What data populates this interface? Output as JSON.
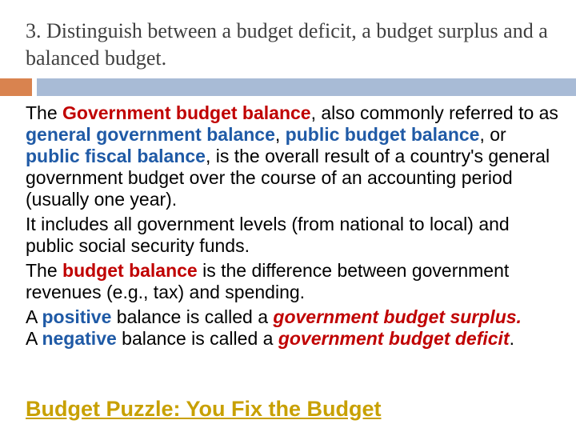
{
  "slide": {
    "title": "3. Distinguish between a budget deficit, a budget surplus and a balanced budget.",
    "p1": {
      "t1": "The ",
      "h1": "Government budget balance",
      "t2": ", also commonly referred to as ",
      "h2": "general government balance",
      "t3": ", ",
      "h3": "public budget balance",
      "t4": ", or ",
      "h4": "public fiscal balance",
      "t5": ", is the overall result of a country's general government budget over the course of an accounting period (usually one year)."
    },
    "p2": "It includes all government levels (from national to local) and public social security funds.",
    "p3": {
      "t1": "The ",
      "h1": "budget balance",
      "t2": " is the difference between government revenues (e.g., tax) and spending."
    },
    "p4": {
      "t1": "A ",
      "h1": "positive",
      "t2": " balance is called a ",
      "h2": "government budget surplus.",
      "t3": "       A ",
      "h3": "negative",
      "t4": " balance is called a ",
      "h4": "government budget deficit",
      "t5": "."
    },
    "link": "Budget Puzzle: You Fix the Budget"
  },
  "colors": {
    "accent_orange": "#d9834f",
    "accent_blue": "#a8bbd6",
    "highlight_red": "#c00000",
    "highlight_blue": "#1f5aa6",
    "link_gold": "#c8a000"
  }
}
